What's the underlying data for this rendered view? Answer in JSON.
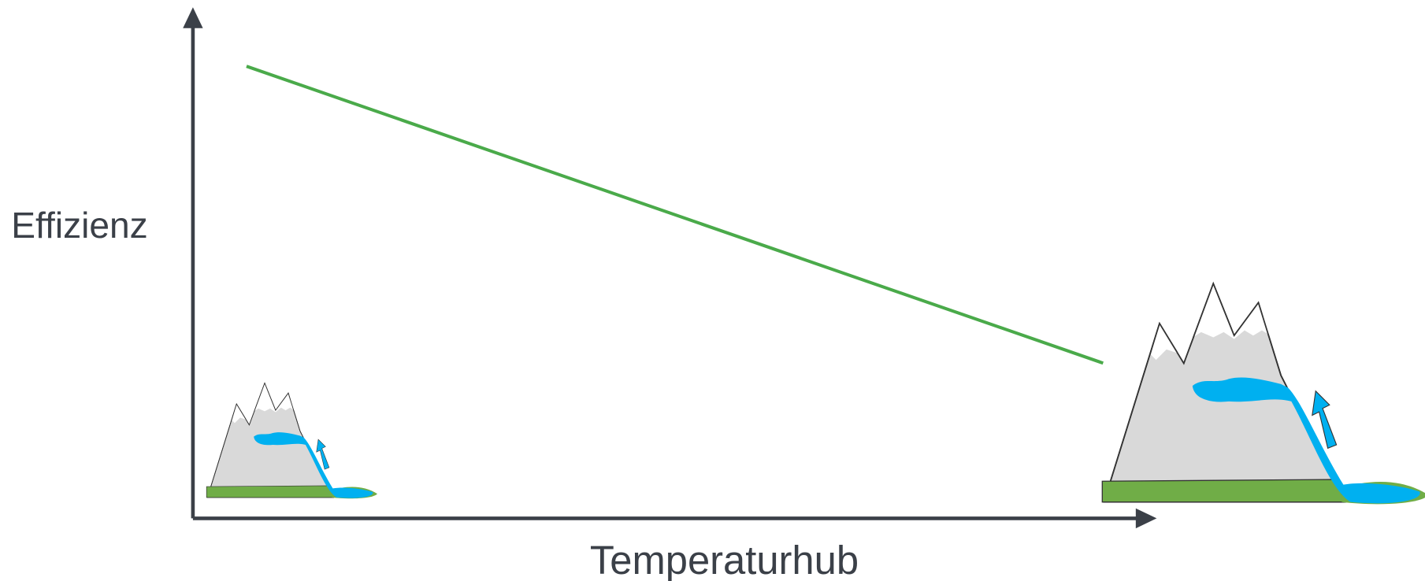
{
  "axes": {
    "y_label": "Effizienz",
    "x_label": "Temperaturhub"
  }
}
